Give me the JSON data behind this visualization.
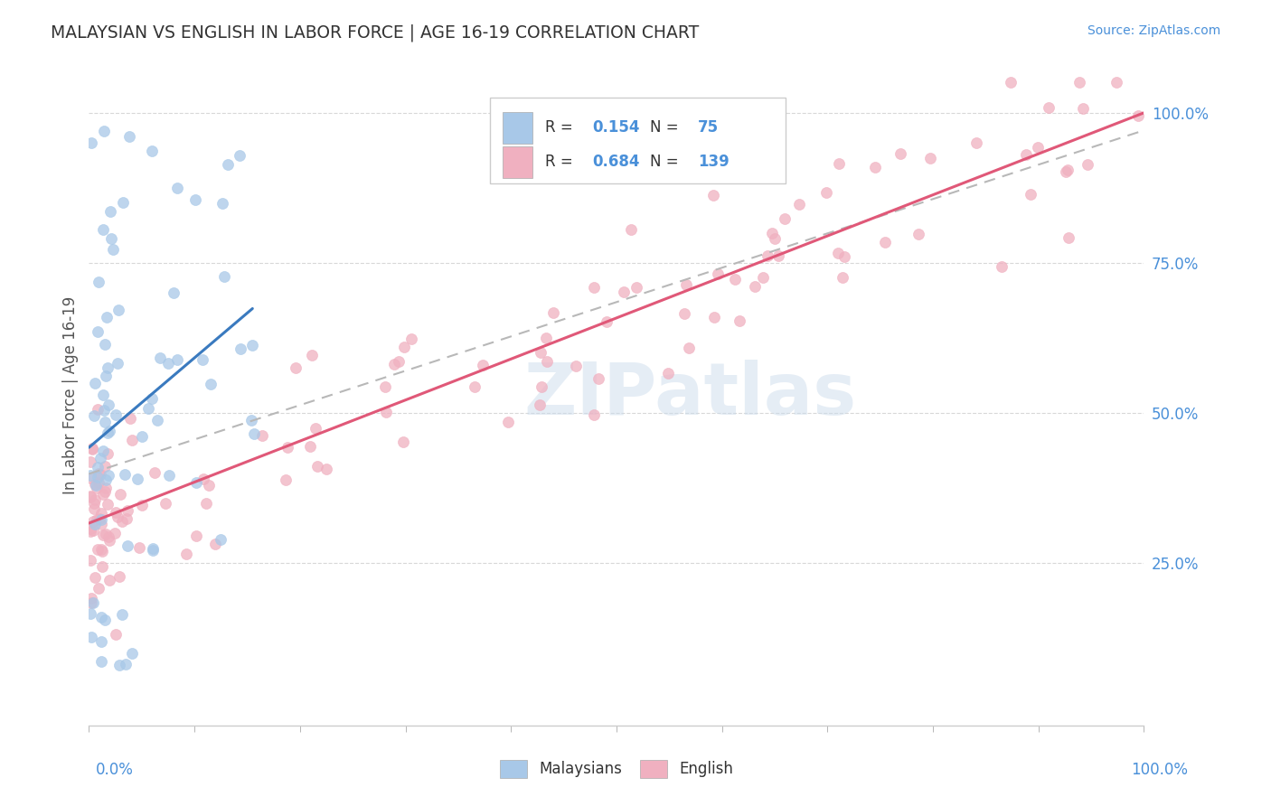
{
  "title": "MALAYSIAN VS ENGLISH IN LABOR FORCE | AGE 16-19 CORRELATION CHART",
  "source": "Source: ZipAtlas.com",
  "ylabel": "In Labor Force | Age 16-19",
  "watermark": "ZIPatlas",
  "malaysian_color": "#a8c8e8",
  "english_color": "#f0b0c0",
  "trend_malaysian_color": "#3a7abf",
  "trend_english_color": "#e05878",
  "trend_dashed_color": "#b8b8b8",
  "background_color": "#ffffff",
  "malaysian_r": 0.154,
  "malaysian_n": 75,
  "english_r": 0.684,
  "english_n": 139,
  "legend_box_color": "#cccccc",
  "axis_label_color": "#4a90d9",
  "title_color": "#333333",
  "ylabel_color": "#555555"
}
